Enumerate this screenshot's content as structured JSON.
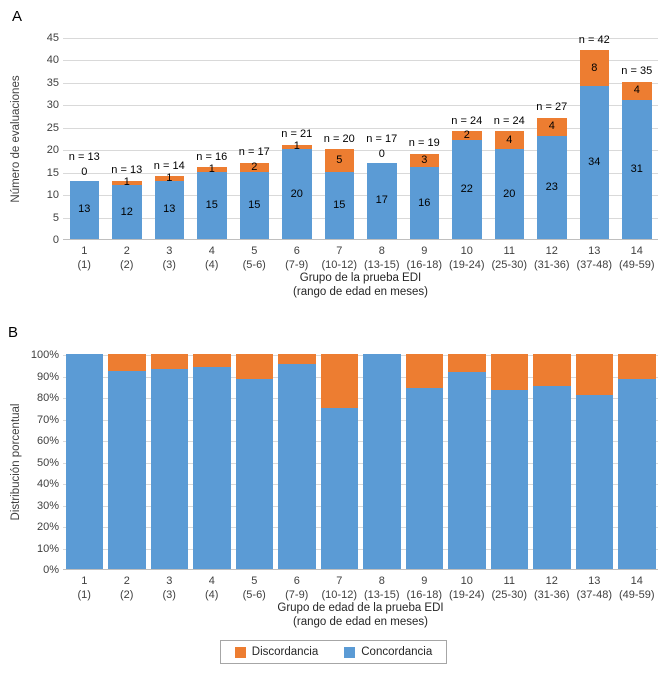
{
  "page": {
    "panel_a": "A",
    "panel_b": "B"
  },
  "colors": {
    "concordancia": "#5B9BD5",
    "discordancia": "#ED7D31",
    "gridline": "#D9D9D9",
    "axis": "#BFBFBF"
  },
  "chart_data": [
    {
      "type": "bar",
      "stacked": true,
      "panel": "A",
      "ylabel": "Número de evaluaciones",
      "xlabel": "Grupo de la prueba EDI",
      "xlabel2": "(rango de edad en meses)",
      "ylim": [
        0,
        45
      ],
      "yticks": [
        0,
        5,
        10,
        15,
        20,
        25,
        30,
        35,
        40,
        45
      ],
      "ytick_suffix": "",
      "grid": true,
      "categories": [
        "1",
        "2",
        "3",
        "4",
        "5",
        "6",
        "7",
        "8",
        "9",
        "10",
        "11",
        "12",
        "13",
        "14"
      ],
      "category_sub": [
        "(1)",
        "(2)",
        "(3)",
        "(4)",
        "(5-6)",
        "(7-9)",
        "(10-12)",
        "(13-15)",
        "(16-18)",
        "(19-24)",
        "(25-30)",
        "(31-36)",
        "(37-48)",
        "(49-59)"
      ],
      "series": [
        {
          "name": "Concordancia",
          "color": "#5B9BD5",
          "values": [
            13,
            12,
            13,
            15,
            15,
            20,
            15,
            17,
            16,
            22,
            20,
            23,
            34,
            31
          ]
        },
        {
          "name": "Discordancia",
          "color": "#ED7D31",
          "values": [
            0,
            1,
            1,
            1,
            2,
            1,
            5,
            0,
            3,
            2,
            4,
            4,
            8,
            4
          ]
        }
      ],
      "n_labels": [
        "n = 13",
        "n = 13",
        "n = 14",
        "n = 16",
        "n = 17",
        "n = 21",
        "n = 20",
        "n = 17",
        "n = 19",
        "n = 24",
        "n = 24",
        "n = 27",
        "n = 42",
        "n = 35"
      ],
      "show_value_labels": true
    },
    {
      "type": "bar",
      "stacked": true,
      "percent": true,
      "panel": "B",
      "ylabel": "Distribución porcentual",
      "xlabel": "Grupo de edad de la prueba EDI",
      "xlabel2": "(rango de edad en meses)",
      "ylim": [
        0,
        100
      ],
      "yticks": [
        0,
        10,
        20,
        30,
        40,
        50,
        60,
        70,
        80,
        90,
        100
      ],
      "ytick_suffix": "%",
      "grid": true,
      "categories": [
        "1",
        "2",
        "3",
        "4",
        "5",
        "6",
        "7",
        "8",
        "9",
        "10",
        "11",
        "12",
        "13",
        "14"
      ],
      "category_sub": [
        "(1)",
        "(2)",
        "(3)",
        "(4)",
        "(5-6)",
        "(7-9)",
        "(10-12)",
        "(13-15)",
        "(16-18)",
        "(19-24)",
        "(25-30)",
        "(31-36)",
        "(37-48)",
        "(49-59)"
      ],
      "series": [
        {
          "name": "Concordancia",
          "color": "#5B9BD5",
          "values": [
            13,
            12,
            13,
            15,
            15,
            20,
            15,
            17,
            16,
            22,
            20,
            23,
            34,
            31
          ]
        },
        {
          "name": "Discordancia",
          "color": "#ED7D31",
          "values": [
            0,
            1,
            1,
            1,
            2,
            1,
            5,
            0,
            3,
            2,
            4,
            4,
            8,
            4
          ]
        }
      ],
      "show_value_labels": false
    }
  ],
  "legend": {
    "items": [
      {
        "label": "Discordancia",
        "color": "#ED7D31"
      },
      {
        "label": "Concordancia",
        "color": "#5B9BD5"
      }
    ]
  }
}
